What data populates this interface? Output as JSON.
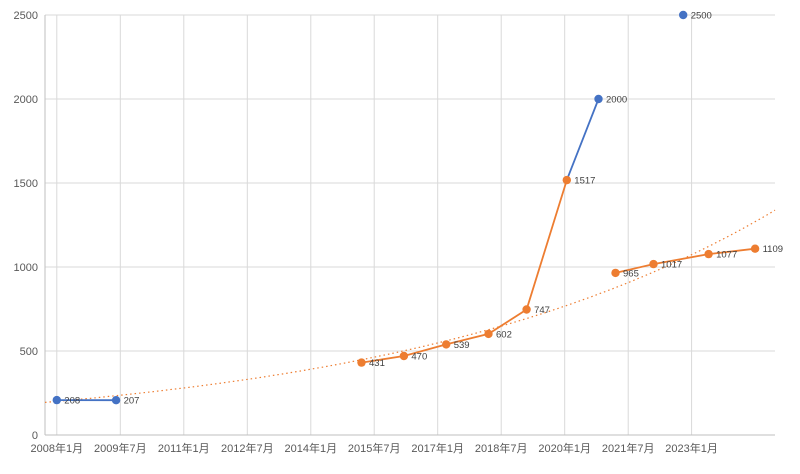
{
  "page": {
    "background": "#ffffff"
  },
  "chart_data": {
    "type": "scatter",
    "title": "",
    "xlabel": "",
    "ylabel": "",
    "grid": true,
    "legend": "none",
    "xlim": [
      2007.72,
      2024.97
    ],
    "ylim": [
      0,
      2500
    ],
    "y_ticks": [
      "0",
      "500",
      "1000",
      "1500",
      "2000",
      "2500"
    ],
    "y_tick_values": [
      0,
      500,
      1000,
      1500,
      2000,
      2500
    ],
    "x_ticks": [
      {
        "x": 2008.0,
        "label": "2008年1月"
      },
      {
        "x": 2009.5,
        "label": "2009年7月"
      },
      {
        "x": 2011.0,
        "label": "2011年1月"
      },
      {
        "x": 2012.5,
        "label": "2012年7月"
      },
      {
        "x": 2014.0,
        "label": "2014年1月"
      },
      {
        "x": 2015.5,
        "label": "2015年7月"
      },
      {
        "x": 2017.0,
        "label": "2017年1月"
      },
      {
        "x": 2018.5,
        "label": "2018年7月"
      },
      {
        "x": 2020.0,
        "label": "2020年1月"
      },
      {
        "x": 2021.5,
        "label": "2021年7月"
      },
      {
        "x": 2023.0,
        "label": "2023年1月"
      }
    ],
    "colors": {
      "blue": "#4472c4",
      "orange": "#ed7d31"
    },
    "grid_color": "#d9d9d9",
    "axis_color": "#bfbfbf",
    "tick_label_color": "#595959",
    "label_color": "#404040",
    "markers": [
      {
        "x": 2008.0,
        "value": 208,
        "label": "208",
        "series": "blue"
      },
      {
        "x": 2009.4,
        "value": 207,
        "label": "207",
        "series": "blue"
      },
      {
        "x": 2015.2,
        "value": 431,
        "label": "431",
        "series": "orange"
      },
      {
        "x": 2016.2,
        "value": 470,
        "label": "470",
        "series": "orange"
      },
      {
        "x": 2017.2,
        "value": 539,
        "label": "539",
        "series": "orange"
      },
      {
        "x": 2018.2,
        "value": 602,
        "label": "602",
        "series": "orange"
      },
      {
        "x": 2019.1,
        "value": 747,
        "label": "747",
        "series": "orange"
      },
      {
        "x": 2020.05,
        "value": 1517,
        "label": "1517",
        "series": "orange"
      },
      {
        "x": 2020.8,
        "value": 2000,
        "label": "2000",
        "series": "blue"
      },
      {
        "x": 2021.2,
        "value": 965,
        "label": "965",
        "series": "orange"
      },
      {
        "x": 2022.1,
        "value": 1017,
        "label": "1017",
        "series": "orange"
      },
      {
        "x": 2022.8,
        "value": 2500,
        "label": "2500",
        "series": "blue"
      },
      {
        "x": 2023.4,
        "value": 1077,
        "label": "1077",
        "series": "orange"
      },
      {
        "x": 2024.5,
        "value": 1109,
        "label": "1109",
        "series": "orange"
      }
    ],
    "lines": [
      {
        "series": "blue",
        "points": [
          [
            2008.0,
            208
          ],
          [
            2009.4,
            207
          ]
        ]
      },
      {
        "series": "orange",
        "points": [
          [
            2015.2,
            431
          ],
          [
            2016.2,
            470
          ],
          [
            2017.2,
            539
          ],
          [
            2018.2,
            602
          ],
          [
            2019.1,
            747
          ],
          [
            2020.05,
            1517
          ]
        ]
      },
      {
        "series": "blue",
        "points": [
          [
            2020.05,
            1517
          ],
          [
            2020.8,
            2000
          ]
        ]
      },
      {
        "series": "orange",
        "points": [
          [
            2021.2,
            965
          ],
          [
            2022.1,
            1017
          ],
          [
            2023.4,
            1077
          ],
          [
            2024.5,
            1109
          ]
        ]
      }
    ],
    "trendline": {
      "series": "orange",
      "style": "dotted",
      "type": "exponential",
      "a": 200,
      "b": 0.112,
      "x0": 2008,
      "x_start": 2007.72,
      "x_end": 2024.97
    }
  }
}
